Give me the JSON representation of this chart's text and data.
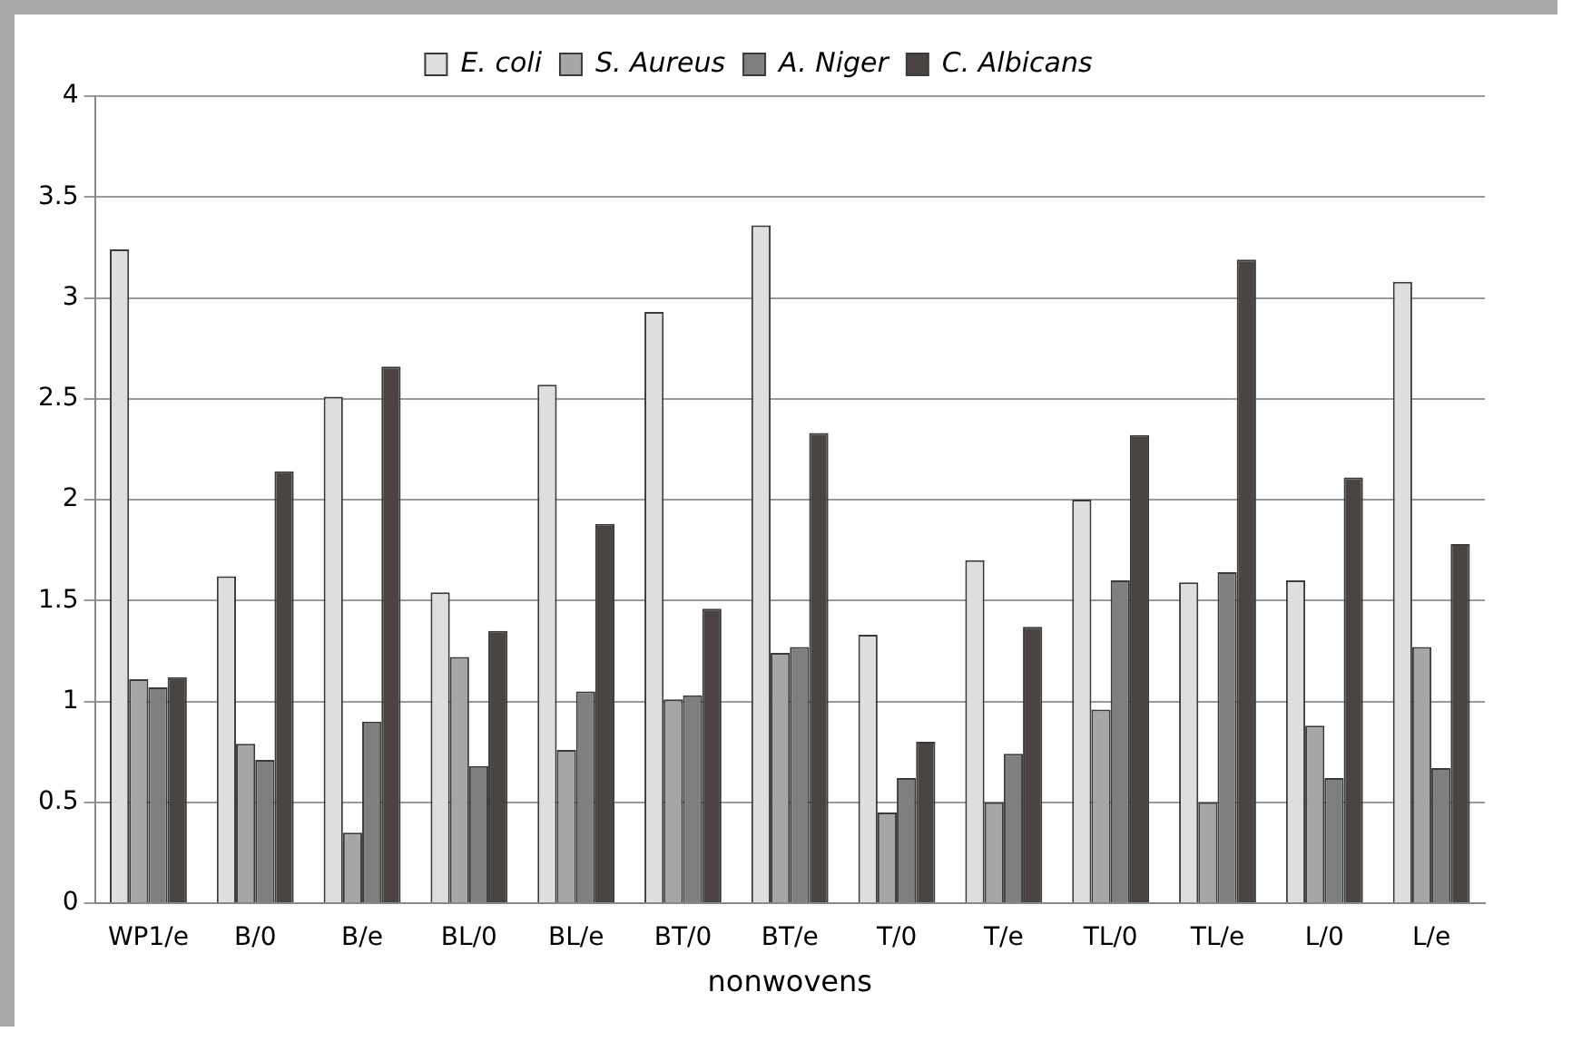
{
  "chart_data": {
    "type": "bar",
    "xlabel": "nonwovens",
    "categories": [
      "WP1/e",
      "B/0",
      "B/e",
      "BL/0",
      "BL/e",
      "BT/0",
      "BT/e",
      "T/0",
      "T/e",
      "TL/0",
      "TL/e",
      "L/0",
      "L/e"
    ],
    "series": [
      {
        "name": "E. coli",
        "color": "#dedede",
        "values": [
          3.24,
          1.62,
          2.51,
          1.54,
          2.57,
          2.93,
          3.36,
          1.33,
          1.7,
          2.0,
          1.59,
          1.6,
          3.08
        ]
      },
      {
        "name": "S. Aureus",
        "color": "#a6a6a6",
        "values": [
          1.11,
          0.79,
          0.35,
          1.22,
          0.76,
          1.01,
          1.24,
          0.45,
          0.5,
          0.96,
          0.5,
          0.88,
          1.27
        ]
      },
      {
        "name": "A. Niger",
        "color": "#7f7f7f",
        "values": [
          1.07,
          0.71,
          0.9,
          0.68,
          1.05,
          1.03,
          1.27,
          0.62,
          0.74,
          1.6,
          1.64,
          0.62,
          0.67
        ]
      },
      {
        "name": "C. Albicans",
        "color": "#4a4542",
        "values": [
          1.12,
          2.14,
          2.66,
          1.35,
          1.88,
          1.46,
          2.33,
          0.8,
          1.37,
          2.32,
          3.19,
          2.11,
          1.78
        ]
      }
    ],
    "ylim": [
      0,
      4
    ],
    "yticks": [
      0,
      0.5,
      1,
      1.5,
      2,
      2.5,
      3,
      3.5,
      4
    ],
    "grid": "y",
    "legend": "top"
  }
}
